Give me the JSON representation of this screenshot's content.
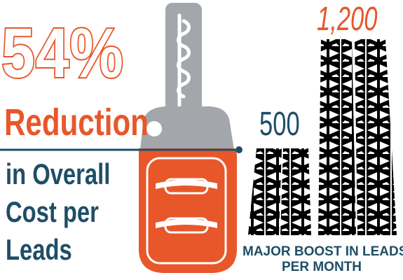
{
  "headline": {
    "percent": "54%",
    "reduction": "Reduction",
    "line1": "in Overall",
    "line2": "Cost per",
    "line3": "Leads"
  },
  "stats": {
    "before_value": "500",
    "after_value": "1,200",
    "caption_line1": "MAJOR BOOST IN LEADS",
    "caption_line2": "PER MONTH"
  },
  "colors": {
    "orange": "#e8572a",
    "navy": "#1f4e66",
    "key_gray": "#a3a6aa"
  },
  "icons": [
    "car-key-icon",
    "tire-tread-icon"
  ]
}
